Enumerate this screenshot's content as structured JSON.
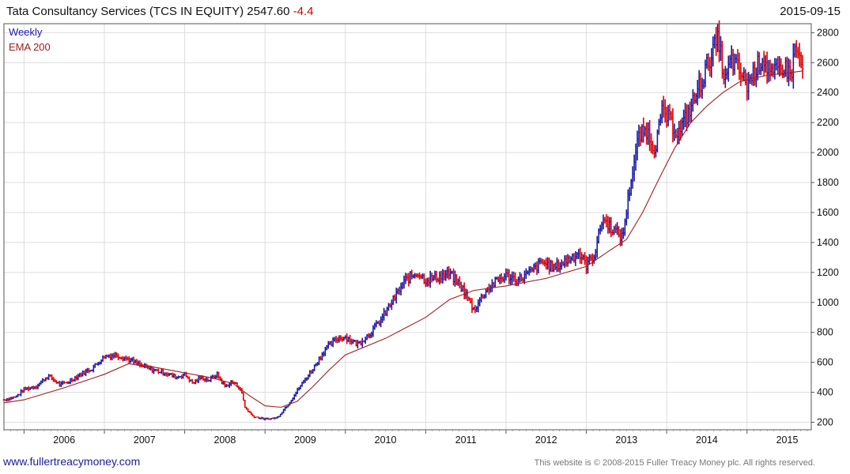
{
  "header": {
    "name": "Tata Consultancy Services (TCS IN EQUITY)",
    "last": "2547.60",
    "change": "-4.4",
    "date": "2015-09-15"
  },
  "footer": {
    "site": "www.fullertreacymoney.com",
    "copyright": "This website is © 2008-2015 Fuller Treacy Money plc. All rights reserved."
  },
  "chart_data": {
    "type": "line",
    "legend": [
      {
        "label": "Weekly",
        "color": "#1a1aa6"
      },
      {
        "label": "EMA 200",
        "color": "#a01e1e"
      }
    ],
    "x_ticks": [
      "2006",
      "2007",
      "2008",
      "2009",
      "2010",
      "2011",
      "2012",
      "2013",
      "2014",
      "2015"
    ],
    "x_range": [
      2005.75,
      2015.8
    ],
    "ylim": [
      150,
      2860
    ],
    "y_ticks": [
      200,
      400,
      600,
      800,
      1000,
      1200,
      1400,
      1600,
      1800,
      2000,
      2200,
      2400,
      2600,
      2800
    ],
    "grid": true,
    "y_axis_side": "right",
    "colors": {
      "up": "#1a1aa6",
      "down": "#e00000",
      "ema": "#a01e1e",
      "grid": "#dddddd",
      "frame": "#555555"
    },
    "series": [
      {
        "name": "Weekly",
        "x": [
          2005.75,
          2005.9,
          2006.0,
          2006.15,
          2006.3,
          2006.45,
          2006.55,
          2006.7,
          2006.85,
          2007.0,
          2007.15,
          2007.3,
          2007.45,
          2007.6,
          2007.75,
          2007.9,
          2008.0,
          2008.1,
          2008.2,
          2008.3,
          2008.4,
          2008.5,
          2008.6,
          2008.7,
          2008.75,
          2008.85,
          2009.0,
          2009.15,
          2009.3,
          2009.45,
          2009.6,
          2009.75,
          2009.9,
          2010.0,
          2010.15,
          2010.3,
          2010.45,
          2010.6,
          2010.75,
          2010.9,
          2011.0,
          2011.15,
          2011.3,
          2011.45,
          2011.55,
          2011.6,
          2011.75,
          2011.9,
          2012.0,
          2012.15,
          2012.3,
          2012.45,
          2012.6,
          2012.75,
          2012.9,
          2013.0,
          2013.1,
          2013.2,
          2013.35,
          2013.45,
          2013.55,
          2013.65,
          2013.75,
          2013.85,
          2013.95,
          2014.05,
          2014.15,
          2014.3,
          2014.45,
          2014.55,
          2014.65,
          2014.72,
          2014.8,
          2014.9,
          2015.0,
          2015.1,
          2015.2,
          2015.3,
          2015.45,
          2015.55,
          2015.6,
          2015.7
        ],
        "values": [
          350,
          370,
          420,
          440,
          510,
          450,
          470,
          520,
          560,
          640,
          650,
          620,
          580,
          550,
          530,
          500,
          520,
          460,
          500,
          480,
          520,
          440,
          470,
          420,
          300,
          240,
          220,
          230,
          330,
          450,
          560,
          690,
          760,
          770,
          720,
          790,
          890,
          1020,
          1150,
          1200,
          1150,
          1170,
          1190,
          1100,
          1000,
          950,
          1080,
          1150,
          1180,
          1150,
          1200,
          1270,
          1230,
          1280,
          1330,
          1250,
          1320,
          1560,
          1480,
          1430,
          1800,
          2100,
          2150,
          2030,
          2280,
          2200,
          2130,
          2300,
          2500,
          2650,
          2760,
          2450,
          2620,
          2550,
          2450,
          2550,
          2640,
          2500,
          2580,
          2520,
          2700,
          2550
        ]
      },
      {
        "name": "EMA 200",
        "x": [
          2005.75,
          2006.0,
          2006.5,
          2007.0,
          2007.3,
          2007.6,
          2008.0,
          2008.3,
          2008.6,
          2008.8,
          2009.0,
          2009.2,
          2009.4,
          2009.6,
          2009.8,
          2010.0,
          2010.5,
          2011.0,
          2011.3,
          2011.6,
          2012.0,
          2012.5,
          2013.0,
          2013.3,
          2013.5,
          2013.7,
          2013.9,
          2014.1,
          2014.3,
          2014.5,
          2014.7,
          2014.9,
          2015.1,
          2015.3,
          2015.5,
          2015.7
        ],
        "values": [
          330,
          350,
          430,
          520,
          590,
          570,
          530,
          500,
          460,
          380,
          310,
          300,
          340,
          440,
          550,
          650,
          760,
          900,
          1020,
          1080,
          1110,
          1160,
          1240,
          1350,
          1420,
          1600,
          1820,
          2030,
          2200,
          2310,
          2400,
          2470,
          2500,
          2520,
          2530,
          2545
        ]
      }
    ]
  }
}
